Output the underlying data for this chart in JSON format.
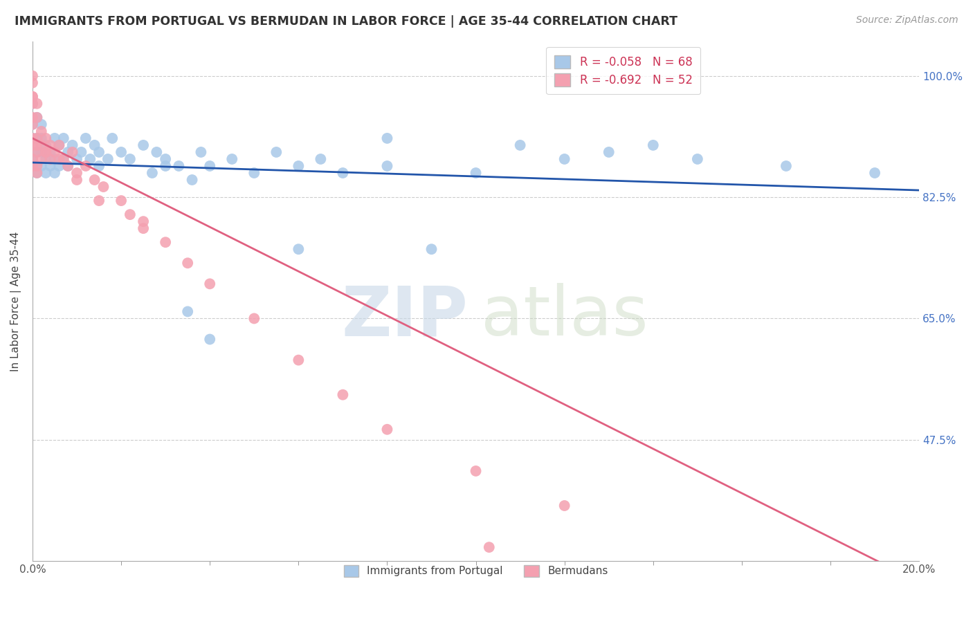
{
  "title": "IMMIGRANTS FROM PORTUGAL VS BERMUDAN IN LABOR FORCE | AGE 35-44 CORRELATION CHART",
  "source": "Source: ZipAtlas.com",
  "ylabel": "In Labor Force | Age 35-44",
  "xlim": [
    0.0,
    0.2
  ],
  "ylim": [
    0.3,
    1.05
  ],
  "ytick_vals": [
    0.475,
    0.65,
    0.825,
    1.0
  ],
  "ytick_labels": [
    "47.5%",
    "65.0%",
    "82.5%",
    "100.0%"
  ],
  "xtick_labels": [
    "0.0%",
    "20.0%"
  ],
  "legend_r1": "R = -0.058",
  "legend_n1": "N = 68",
  "legend_r2": "R = -0.692",
  "legend_n2": "N = 52",
  "color_portugal": "#a8c8e8",
  "color_bermuda": "#f4a0b0",
  "line_color_portugal": "#2255aa",
  "line_color_bermuda": "#e06080",
  "background_color": "#ffffff",
  "grid_color": "#cccccc",
  "portugal_line": [
    0.0,
    0.875,
    0.2,
    0.835
  ],
  "bermuda_line": [
    0.0,
    0.91,
    0.2,
    0.27
  ],
  "portugal_x": [
    0.0,
    0.0,
    0.0,
    0.0,
    0.001,
    0.001,
    0.001,
    0.001,
    0.001,
    0.002,
    0.002,
    0.002,
    0.002,
    0.003,
    0.003,
    0.003,
    0.004,
    0.004,
    0.005,
    0.005,
    0.005,
    0.006,
    0.006,
    0.007,
    0.007,
    0.008,
    0.008,
    0.009,
    0.01,
    0.011,
    0.012,
    0.013,
    0.014,
    0.015,
    0.015,
    0.017,
    0.018,
    0.02,
    0.022,
    0.025,
    0.027,
    0.028,
    0.03,
    0.033,
    0.036,
    0.038,
    0.04,
    0.045,
    0.05,
    0.055,
    0.06,
    0.065,
    0.07,
    0.08,
    0.09,
    0.1,
    0.11,
    0.13,
    0.15,
    0.17,
    0.19,
    0.14,
    0.12,
    0.08,
    0.06,
    0.04,
    0.035,
    0.03
  ],
  "portugal_y": [
    0.93,
    0.91,
    0.96,
    0.88,
    0.94,
    0.91,
    0.89,
    0.87,
    0.86,
    0.91,
    0.89,
    0.87,
    0.93,
    0.9,
    0.88,
    0.86,
    0.89,
    0.87,
    0.91,
    0.88,
    0.86,
    0.9,
    0.87,
    0.91,
    0.88,
    0.89,
    0.87,
    0.9,
    0.88,
    0.89,
    0.91,
    0.88,
    0.9,
    0.87,
    0.89,
    0.88,
    0.91,
    0.89,
    0.88,
    0.9,
    0.86,
    0.89,
    0.88,
    0.87,
    0.85,
    0.89,
    0.87,
    0.88,
    0.86,
    0.89,
    0.87,
    0.88,
    0.86,
    0.87,
    0.75,
    0.86,
    0.9,
    0.89,
    0.88,
    0.87,
    0.86,
    0.9,
    0.88,
    0.91,
    0.75,
    0.62,
    0.66,
    0.87
  ],
  "bermuda_x": [
    0.0,
    0.0,
    0.0,
    0.0,
    0.0,
    0.0,
    0.0,
    0.0,
    0.0,
    0.0,
    0.001,
    0.001,
    0.001,
    0.001,
    0.001,
    0.001,
    0.002,
    0.002,
    0.002,
    0.003,
    0.003,
    0.004,
    0.004,
    0.005,
    0.006,
    0.007,
    0.008,
    0.009,
    0.01,
    0.012,
    0.014,
    0.016,
    0.02,
    0.022,
    0.025,
    0.03,
    0.035,
    0.04,
    0.05,
    0.06,
    0.07,
    0.08,
    0.1,
    0.12,
    0.025,
    0.015,
    0.01,
    0.006,
    0.003,
    0.001,
    0.0,
    0.103
  ],
  "bermuda_y": [
    1.0,
    0.99,
    0.97,
    0.96,
    0.94,
    0.93,
    0.91,
    0.9,
    0.88,
    0.87,
    0.96,
    0.94,
    0.91,
    0.89,
    0.87,
    0.86,
    0.92,
    0.9,
    0.88,
    0.91,
    0.89,
    0.9,
    0.88,
    0.89,
    0.9,
    0.88,
    0.87,
    0.89,
    0.86,
    0.87,
    0.85,
    0.84,
    0.82,
    0.8,
    0.78,
    0.76,
    0.73,
    0.7,
    0.65,
    0.59,
    0.54,
    0.49,
    0.43,
    0.38,
    0.79,
    0.82,
    0.85,
    0.88,
    0.89,
    0.9,
    0.97,
    0.32
  ]
}
